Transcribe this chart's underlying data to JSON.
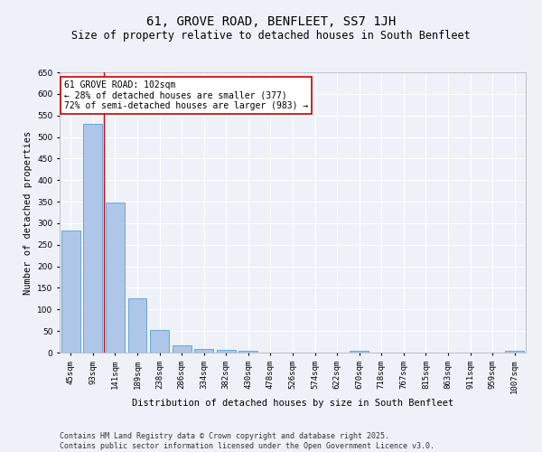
{
  "title": "61, GROVE ROAD, BENFLEET, SS7 1JH",
  "subtitle": "Size of property relative to detached houses in South Benfleet",
  "xlabel": "Distribution of detached houses by size in South Benfleet",
  "ylabel": "Number of detached properties",
  "categories": [
    "45sqm",
    "93sqm",
    "141sqm",
    "189sqm",
    "238sqm",
    "286sqm",
    "334sqm",
    "382sqm",
    "430sqm",
    "478sqm",
    "526sqm",
    "574sqm",
    "622sqm",
    "670sqm",
    "718sqm",
    "767sqm",
    "815sqm",
    "863sqm",
    "911sqm",
    "959sqm",
    "1007sqm"
  ],
  "values": [
    283,
    530,
    348,
    126,
    52,
    16,
    9,
    7,
    4,
    0,
    0,
    0,
    0,
    4,
    0,
    0,
    0,
    0,
    0,
    0,
    4
  ],
  "bar_color": "#aec6e8",
  "bar_edge_color": "#5a9fd4",
  "vline_x": 1.5,
  "vline_color": "#cc0000",
  "annotation_text": "61 GROVE ROAD: 102sqm\n← 28% of detached houses are smaller (377)\n72% of semi-detached houses are larger (983) →",
  "annotation_box_color": "#ffffff",
  "annotation_box_edge_color": "#cc0000",
  "ylim": [
    0,
    650
  ],
  "yticks": [
    0,
    50,
    100,
    150,
    200,
    250,
    300,
    350,
    400,
    450,
    500,
    550,
    600,
    650
  ],
  "footer_line1": "Contains HM Land Registry data © Crown copyright and database right 2025.",
  "footer_line2": "Contains public sector information licensed under the Open Government Licence v3.0.",
  "background_color": "#eef2f8",
  "grid_color": "#ffffff",
  "title_fontsize": 10,
  "subtitle_fontsize": 8.5,
  "axis_label_fontsize": 7.5,
  "tick_fontsize": 6.5,
  "footer_fontsize": 6.0
}
